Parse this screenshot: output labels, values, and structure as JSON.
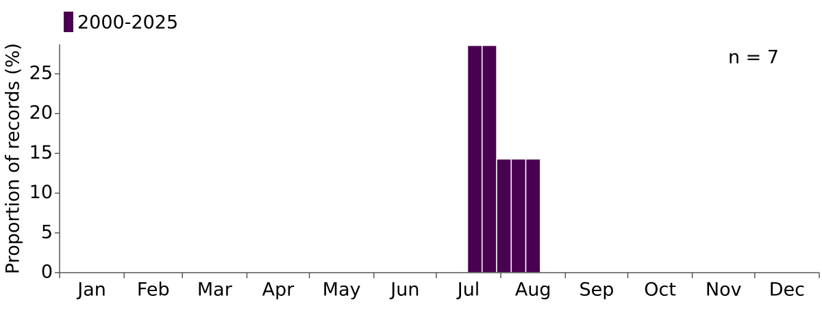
{
  "chart_data": {
    "type": "histogram",
    "series": [
      {
        "name": "2000-2025",
        "color": "#4a0050",
        "values": [
          28.57,
          28.57,
          14.29,
          14.29,
          14.29
        ]
      }
    ],
    "bins": [
      196,
      203,
      210,
      217,
      224,
      231
    ],
    "categories": [
      "Jan",
      "Feb",
      "Mar",
      "Apr",
      "May",
      "Jun",
      "Jul",
      "Aug",
      "Sep",
      "Oct",
      "Nov",
      "Dec"
    ],
    "xlim": [
      0,
      365
    ],
    "xticks": [
      0,
      31,
      59,
      90,
      120,
      151,
      181,
      212,
      243,
      273,
      304,
      334,
      365
    ],
    "ylim": [
      0,
      28.7
    ],
    "yticks": [
      0,
      5,
      10,
      15,
      20,
      25
    ],
    "ylabel": "Proportion of records (%)",
    "annotation": "n = 7",
    "legend": "top-left"
  }
}
